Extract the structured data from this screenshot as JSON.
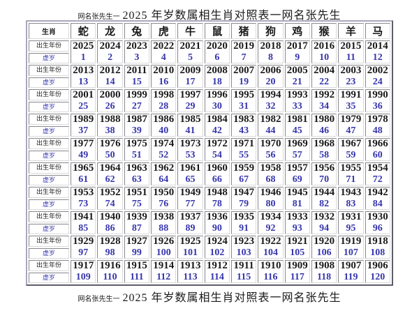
{
  "title": {
    "prefix": "网名张先生一",
    "main": "2025 年岁数属相生肖对照表一网名张先生"
  },
  "footer": {
    "prefix": "网名张先生一",
    "main": "2025 年岁数属相生肖对照表一网名张先生"
  },
  "table": {
    "corner_label": "生肖",
    "zodiac": [
      "蛇",
      "龙",
      "兔",
      "虎",
      "牛",
      "鼠",
      "猪",
      "狗",
      "鸡",
      "猴",
      "羊",
      "马"
    ],
    "row_labels": {
      "year": "出生年份",
      "age": "虚岁"
    },
    "groups": [
      {
        "years": [
          2025,
          2024,
          2023,
          2022,
          2021,
          2020,
          2019,
          2018,
          2017,
          2016,
          2015,
          2014
        ],
        "ages": [
          1,
          2,
          3,
          4,
          5,
          6,
          7,
          8,
          9,
          10,
          11,
          12
        ]
      },
      {
        "years": [
          2013,
          2012,
          2011,
          2010,
          2009,
          2008,
          2007,
          2006,
          2005,
          2004,
          2003,
          2002
        ],
        "ages": [
          13,
          14,
          15,
          16,
          17,
          18,
          19,
          20,
          21,
          22,
          23,
          24
        ]
      },
      {
        "years": [
          2001,
          2000,
          1999,
          1998,
          1997,
          1996,
          1995,
          1994,
          1993,
          1992,
          1991,
          1990
        ],
        "ages": [
          25,
          26,
          27,
          28,
          29,
          30,
          31,
          32,
          33,
          34,
          35,
          36
        ]
      },
      {
        "years": [
          1989,
          1988,
          1987,
          1986,
          1985,
          1984,
          1983,
          1982,
          1981,
          1980,
          1979,
          1978
        ],
        "ages": [
          37,
          38,
          39,
          40,
          41,
          42,
          43,
          44,
          45,
          46,
          47,
          48
        ]
      },
      {
        "years": [
          1977,
          1976,
          1975,
          1974,
          1973,
          1972,
          1971,
          1970,
          1969,
          1968,
          1967,
          1966
        ],
        "ages": [
          49,
          50,
          51,
          52,
          53,
          54,
          55,
          56,
          57,
          58,
          59,
          60
        ]
      },
      {
        "years": [
          1965,
          1964,
          1963,
          1962,
          1961,
          1960,
          1959,
          1958,
          1957,
          1956,
          1955,
          1954
        ],
        "ages": [
          61,
          62,
          63,
          64,
          65,
          66,
          67,
          68,
          69,
          70,
          71,
          72
        ]
      },
      {
        "years": [
          1953,
          1952,
          1951,
          1950,
          1949,
          1948,
          1947,
          1946,
          1945,
          1944,
          1943,
          1942
        ],
        "ages": [
          73,
          74,
          75,
          76,
          77,
          78,
          79,
          80,
          81,
          82,
          83,
          84
        ]
      },
      {
        "years": [
          1941,
          1940,
          1939,
          1938,
          1937,
          1936,
          1935,
          1934,
          1933,
          1932,
          1931,
          1930
        ],
        "ages": [
          85,
          86,
          87,
          88,
          89,
          90,
          91,
          92,
          93,
          94,
          95,
          96
        ]
      },
      {
        "years": [
          1929,
          1928,
          1927,
          1926,
          1925,
          1924,
          1923,
          1922,
          1921,
          1920,
          1919,
          1918
        ],
        "ages": [
          97,
          98,
          99,
          100,
          101,
          102,
          103,
          104,
          105,
          106,
          107,
          108
        ]
      },
      {
        "years": [
          1917,
          1916,
          1915,
          1914,
          1913,
          1912,
          1911,
          1910,
          1909,
          1908,
          1907,
          1906
        ],
        "ages": [
          109,
          110,
          111,
          112,
          113,
          114,
          115,
          116,
          117,
          118,
          119,
          120
        ]
      }
    ]
  },
  "colors": {
    "age_blue": "#3535ac",
    "label_blue": "#4242b0",
    "text_black": "#1a1a1a",
    "outer_border": "#a8a8bc"
  }
}
